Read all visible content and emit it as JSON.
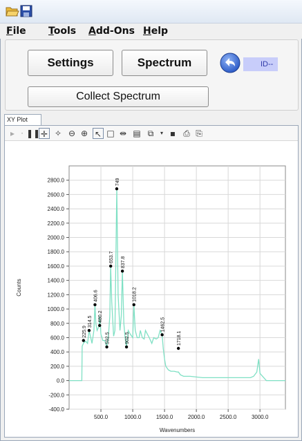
{
  "menu": {
    "items": [
      "File",
      "Tools",
      "Add-Ons",
      "Help"
    ]
  },
  "controls": {
    "settings_label": "Settings",
    "spectrum_label": "Spectrum",
    "collect_label": "Collect Spectrum",
    "id_label": "ID--"
  },
  "tabs": {
    "xy_plot": "XY Plot"
  },
  "colors": {
    "spectrum_line": "#7fe0c4",
    "marker": "#000000",
    "grid": "#d8d8d8",
    "id_bg": "#c8cdfa"
  },
  "chart_data": {
    "type": "line",
    "xlabel": "Wavenumbers",
    "ylabel": "Counts",
    "xlim": [
      0,
      3400
    ],
    "ylim": [
      -400,
      3000
    ],
    "x_ticks": [
      "500.0",
      "1000.0",
      "1500.0",
      "2000.0",
      "2500.0",
      "3000.0"
    ],
    "y_ticks": [
      "-400.0",
      "-200.0",
      "0.0",
      "200.0",
      "400.0",
      "600.0",
      "800.0",
      "1000.0",
      "1200.0",
      "1400.0",
      "1600.0",
      "1800.0",
      "2000.0",
      "2200.0",
      "2400.0",
      "2600.0",
      "2800.0"
    ],
    "grid": true,
    "series": [
      {
        "values_x": [
          0,
          200,
          205,
          230,
          260,
          290,
          315,
          330,
          360,
          390,
          406,
          420,
          440,
          470,
          480,
          500,
          530,
          560,
          592,
          620,
          640,
          653,
          670,
          700,
          720,
          749,
          770,
          800,
          820,
          837,
          860,
          880,
          902,
          930,
          960,
          1000,
          1018,
          1040,
          1070,
          1100,
          1120,
          1150,
          1180,
          1200,
          1230,
          1260,
          1300,
          1330,
          1370,
          1400,
          1430,
          1462,
          1480,
          1500,
          1520,
          1560,
          1600,
          1650,
          1700,
          1718,
          1750,
          1800,
          1900,
          2000,
          2100,
          2200,
          2300,
          2400,
          2500,
          2600,
          2700,
          2800,
          2850,
          2900,
          2950,
          2980,
          3000,
          3100,
          3200,
          3400
        ],
        "values_y": [
          0,
          0,
          480,
          530,
          550,
          520,
          700,
          640,
          520,
          700,
          1060,
          800,
          700,
          760,
          900,
          650,
          560,
          560,
          470,
          650,
          900,
          1600,
          1100,
          620,
          700,
          2680,
          1200,
          700,
          900,
          1530,
          800,
          600,
          470,
          700,
          650,
          600,
          1060,
          700,
          600,
          600,
          700,
          600,
          580,
          700,
          650,
          600,
          520,
          600,
          580,
          600,
          700,
          640,
          450,
          300,
          200,
          150,
          130,
          130,
          120,
          120,
          80,
          60,
          60,
          50,
          40,
          40,
          40,
          40,
          40,
          40,
          40,
          40,
          40,
          60,
          120,
          300,
          100,
          0,
          0,
          0
        ]
      }
    ],
    "annotations": [
      {
        "x": 225.9,
        "y": 560,
        "label": "225.9"
      },
      {
        "x": 314.5,
        "y": 700,
        "label": "314.5"
      },
      {
        "x": 406.6,
        "y": 1060,
        "label": "406.6"
      },
      {
        "x": 480.2,
        "y": 770,
        "label": "480.2"
      },
      {
        "x": 592.5,
        "y": 470,
        "label": "592.5"
      },
      {
        "x": 653.7,
        "y": 1600,
        "label": "653.7"
      },
      {
        "x": 749,
        "y": 2680,
        "label": "749"
      },
      {
        "x": 837.8,
        "y": 1530,
        "label": "837.8"
      },
      {
        "x": 902.5,
        "y": 470,
        "label": "902.5"
      },
      {
        "x": 1018.2,
        "y": 1060,
        "label": "1018.2"
      },
      {
        "x": 1462.5,
        "y": 640,
        "label": "1462.5"
      },
      {
        "x": 1718.1,
        "y": 450,
        "label": "1718.1"
      }
    ]
  }
}
